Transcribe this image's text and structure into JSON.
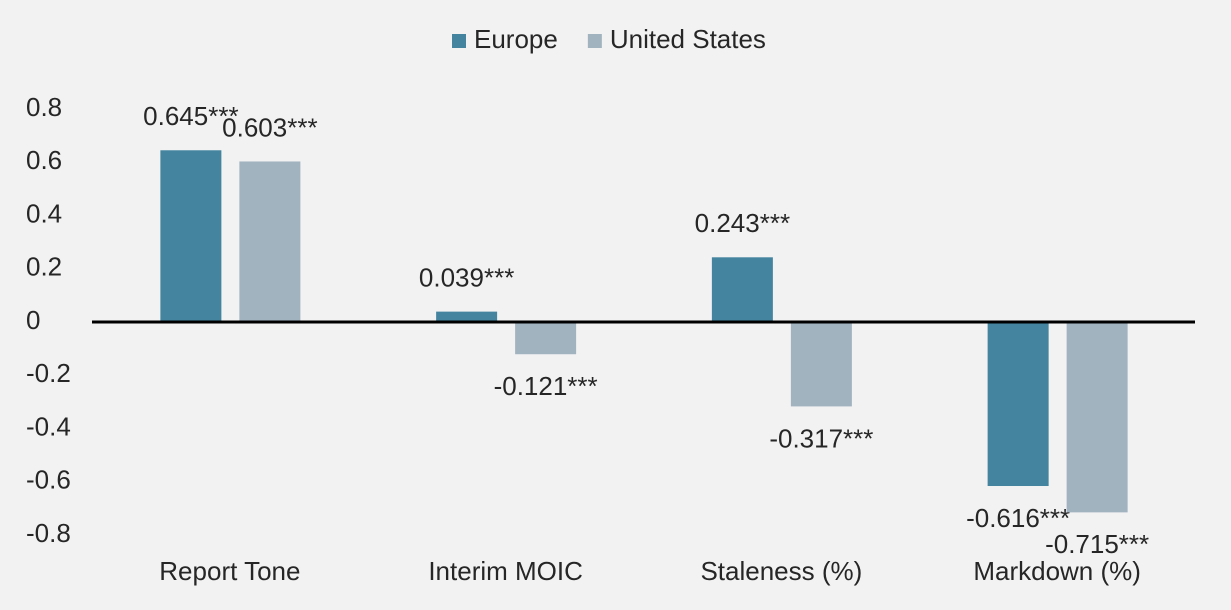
{
  "chart_data": {
    "type": "bar",
    "categories": [
      "Report Tone",
      "Interim MOIC",
      "Staleness (%)",
      "Markdown (%)"
    ],
    "series": [
      {
        "name": "Europe",
        "color": "#44849f",
        "values": [
          0.645,
          0.039,
          0.243,
          -0.616
        ],
        "value_labels": [
          "0.645***",
          "0.039***",
          "0.243***",
          "-0.616***"
        ]
      },
      {
        "name": "United States",
        "color": "#a2b3c0",
        "values": [
          0.603,
          -0.121,
          -0.317,
          -0.715
        ],
        "value_labels": [
          "0.603***",
          "-0.121***",
          "-0.317***",
          "-0.715***"
        ]
      }
    ],
    "ylim": [
      -0.8,
      0.8
    ],
    "yticks": [
      -0.8,
      -0.6,
      -0.4,
      -0.2,
      0,
      0.2,
      0.4,
      0.6,
      0.8
    ],
    "grid": false,
    "legend": "top"
  }
}
